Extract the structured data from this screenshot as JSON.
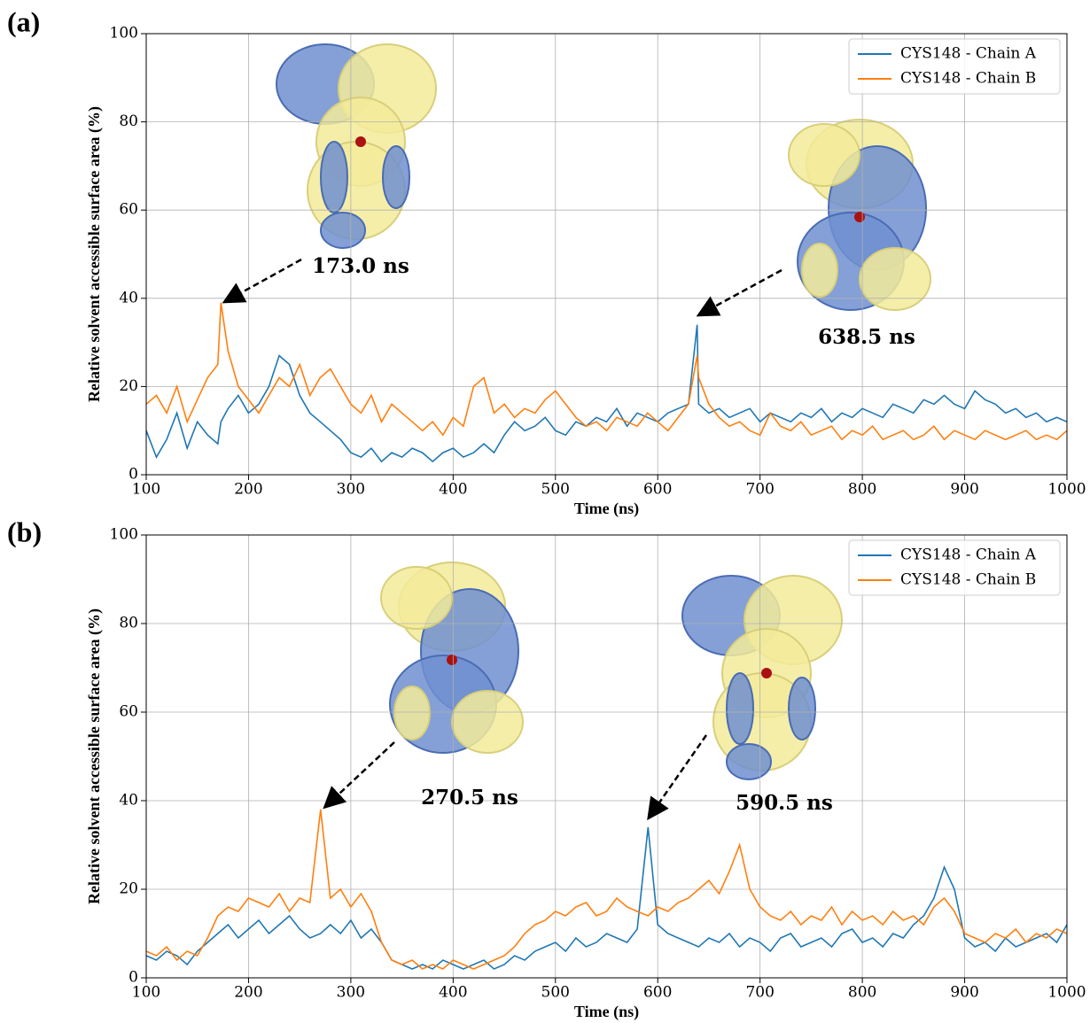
{
  "chart_data": [
    {
      "type": "line",
      "panel_label": "(a)",
      "x_label": "Time (ns)",
      "y_label": "Relative solvent accessible surface area (%)",
      "x": [
        100,
        110,
        120,
        130,
        140,
        150,
        160,
        170,
        173,
        180,
        190,
        200,
        210,
        220,
        230,
        240,
        250,
        260,
        270,
        280,
        290,
        300,
        310,
        320,
        330,
        340,
        350,
        360,
        370,
        380,
        390,
        400,
        410,
        420,
        430,
        440,
        450,
        460,
        470,
        480,
        490,
        500,
        510,
        520,
        530,
        540,
        550,
        560,
        570,
        580,
        590,
        600,
        610,
        620,
        630,
        638.5,
        640,
        650,
        660,
        670,
        680,
        690,
        700,
        710,
        720,
        730,
        740,
        750,
        760,
        770,
        780,
        790,
        800,
        810,
        820,
        830,
        840,
        850,
        860,
        870,
        880,
        890,
        900,
        910,
        920,
        930,
        940,
        950,
        960,
        970,
        980,
        990,
        1000
      ],
      "series": [
        {
          "name": "CYS148 - Chain A",
          "color": "#1f77b4",
          "values": [
            10,
            4,
            8,
            14,
            6,
            12,
            9,
            7,
            12,
            15,
            18,
            14,
            16,
            20,
            27,
            25,
            18,
            14,
            12,
            10,
            8,
            5,
            4,
            6,
            3,
            5,
            4,
            6,
            5,
            3,
            5,
            6,
            4,
            5,
            7,
            5,
            9,
            12,
            10,
            11,
            13,
            10,
            9,
            12,
            11,
            13,
            12,
            15,
            11,
            14,
            13,
            12,
            14,
            15,
            16,
            34,
            16,
            14,
            15,
            13,
            14,
            15,
            12,
            14,
            13,
            12,
            14,
            13,
            15,
            12,
            14,
            13,
            15,
            14,
            13,
            16,
            15,
            14,
            17,
            16,
            18,
            16,
            15,
            19,
            17,
            16,
            14,
            15,
            13,
            14,
            12,
            13,
            12
          ]
        },
        {
          "name": "CYS148 - Chain B",
          "color": "#ff7f0e",
          "values": [
            16,
            18,
            14,
            20,
            12,
            17,
            22,
            25,
            39,
            28,
            20,
            17,
            14,
            18,
            22,
            20,
            25,
            18,
            22,
            24,
            20,
            16,
            14,
            18,
            12,
            16,
            14,
            12,
            10,
            12,
            9,
            13,
            11,
            20,
            22,
            14,
            16,
            13,
            15,
            14,
            17,
            19,
            16,
            13,
            11,
            12,
            10,
            13,
            12,
            11,
            14,
            12,
            10,
            13,
            16,
            27,
            22,
            16,
            13,
            11,
            12,
            10,
            9,
            14,
            11,
            10,
            12,
            9,
            10,
            11,
            8,
            10,
            9,
            11,
            8,
            9,
            10,
            8,
            9,
            11,
            8,
            10,
            9,
            8,
            10,
            9,
            8,
            9,
            10,
            8,
            9,
            8,
            10
          ]
        }
      ],
      "xlim": [
        100,
        1000
      ],
      "ylim": [
        0,
        100
      ],
      "xticks": [
        100,
        200,
        300,
        400,
        500,
        600,
        700,
        800,
        900,
        1000
      ],
      "yticks": [
        0,
        20,
        40,
        60,
        80,
        100
      ],
      "grid": true,
      "legend": "upper right",
      "annotations": [
        {
          "text": "173.0 ns"
        },
        {
          "text": "638.5 ns"
        }
      ]
    },
    {
      "type": "line",
      "panel_label": "(b)",
      "x_label": "Time (ns)",
      "y_label": "Relative solvent accessible surface area (%)",
      "x": [
        100,
        110,
        120,
        130,
        140,
        150,
        160,
        170,
        180,
        190,
        200,
        210,
        220,
        230,
        240,
        250,
        260,
        270.5,
        280,
        290,
        300,
        310,
        320,
        330,
        340,
        350,
        360,
        370,
        380,
        390,
        400,
        410,
        420,
        430,
        440,
        450,
        460,
        470,
        480,
        490,
        500,
        510,
        520,
        530,
        540,
        550,
        560,
        570,
        580,
        590.5,
        600,
        610,
        620,
        630,
        640,
        650,
        660,
        670,
        680,
        690,
        700,
        710,
        720,
        730,
        740,
        750,
        760,
        770,
        780,
        790,
        800,
        810,
        820,
        830,
        840,
        850,
        860,
        870,
        880,
        890,
        900,
        910,
        920,
        930,
        940,
        950,
        960,
        970,
        980,
        990,
        1000
      ],
      "series": [
        {
          "name": "CYS148 - Chain A",
          "color": "#1f77b4",
          "values": [
            5,
            4,
            6,
            5,
            3,
            6,
            8,
            10,
            12,
            9,
            11,
            13,
            10,
            12,
            14,
            11,
            9,
            10,
            12,
            10,
            13,
            9,
            11,
            8,
            4,
            3,
            2,
            3,
            2,
            4,
            3,
            2,
            3,
            4,
            2,
            3,
            5,
            4,
            6,
            7,
            8,
            6,
            9,
            7,
            8,
            10,
            9,
            8,
            11,
            34,
            12,
            10,
            9,
            8,
            7,
            9,
            8,
            10,
            7,
            9,
            8,
            6,
            9,
            10,
            7,
            8,
            9,
            7,
            10,
            11,
            8,
            9,
            7,
            10,
            9,
            12,
            14,
            18,
            25,
            20,
            9,
            7,
            8,
            6,
            9,
            7,
            8,
            9,
            10,
            8,
            12
          ]
        },
        {
          "name": "CYS148 - Chain B",
          "color": "#ff7f0e",
          "values": [
            6,
            5,
            7,
            4,
            6,
            5,
            9,
            14,
            16,
            15,
            18,
            17,
            16,
            19,
            15,
            18,
            17,
            38,
            18,
            20,
            16,
            19,
            15,
            8,
            4,
            3,
            4,
            2,
            3,
            2,
            4,
            3,
            2,
            3,
            4,
            5,
            7,
            10,
            12,
            13,
            15,
            14,
            16,
            17,
            14,
            15,
            18,
            16,
            15,
            14,
            16,
            15,
            17,
            18,
            20,
            22,
            19,
            24,
            30,
            20,
            16,
            14,
            13,
            15,
            12,
            14,
            13,
            16,
            12,
            15,
            13,
            14,
            12,
            15,
            13,
            14,
            12,
            16,
            18,
            15,
            10,
            9,
            8,
            10,
            9,
            11,
            8,
            10,
            9,
            11,
            10
          ]
        }
      ],
      "xlim": [
        100,
        1000
      ],
      "ylim": [
        0,
        100
      ],
      "xticks": [
        100,
        200,
        300,
        400,
        500,
        600,
        700,
        800,
        900,
        1000
      ],
      "yticks": [
        0,
        20,
        40,
        60,
        80,
        100
      ],
      "grid": true,
      "legend": "upper right",
      "annotations": [
        {
          "text": "270.5 ns"
        },
        {
          "text": "590.5 ns"
        }
      ]
    }
  ]
}
